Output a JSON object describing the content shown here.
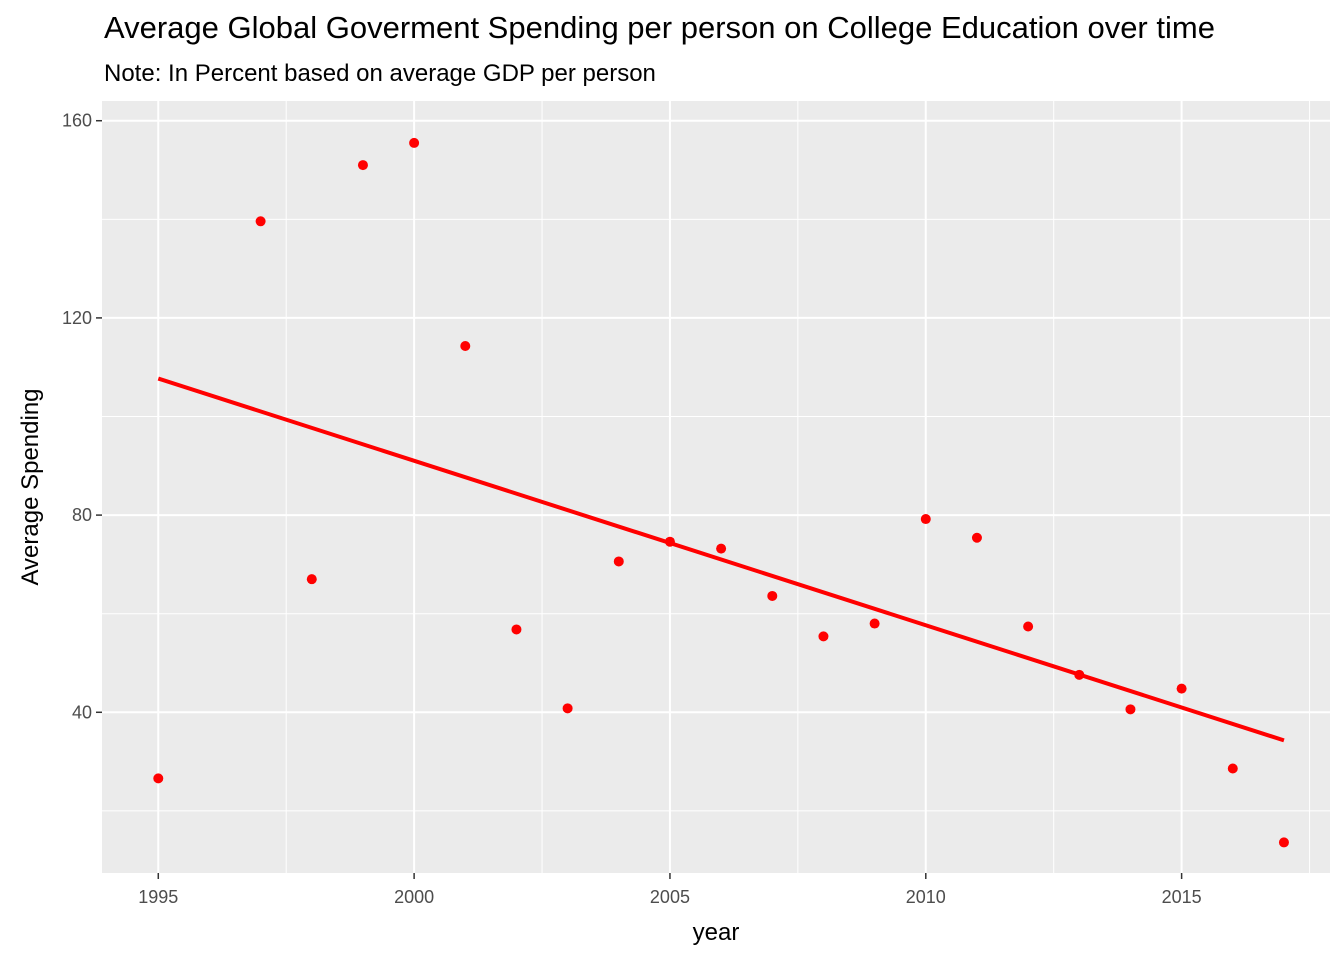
{
  "chart_data": {
    "type": "scatter",
    "title": "Average Global Goverment Spending per person on College Education over time",
    "subtitle": "Note: In Percent based on average GDP per person",
    "xlabel": "year",
    "ylabel": "Average Spending",
    "xlim": [
      1993.9,
      2017.9
    ],
    "ylim": [
      7.4,
      164.0
    ],
    "x_ticks": [
      1995,
      2000,
      2005,
      2010,
      2015
    ],
    "y_ticks": [
      40,
      80,
      120,
      160
    ],
    "grid": true,
    "legend": "none",
    "colors": {
      "panel": "#ebebeb",
      "grid": "#ffffff",
      "points": "#ff0000",
      "trend": "#ff0000"
    },
    "series": [
      {
        "x": [
          1995,
          1997,
          1998,
          1999,
          2000,
          2001,
          2002,
          2003,
          2004,
          2005,
          2006,
          2007,
          2008,
          2009,
          2010,
          2011,
          2012,
          2013,
          2014,
          2015,
          2016,
          2017
        ],
        "y": [
          26.6,
          139.6,
          67.0,
          151.0,
          155.5,
          114.3,
          56.8,
          40.8,
          70.6,
          74.6,
          73.2,
          63.6,
          55.4,
          58.0,
          79.2,
          75.4,
          57.4,
          47.6,
          40.6,
          44.8,
          28.6,
          13.6
        ]
      }
    ],
    "trend_line": {
      "x": [
        1995,
        2017
      ],
      "y": [
        107.7,
        34.3
      ]
    }
  }
}
